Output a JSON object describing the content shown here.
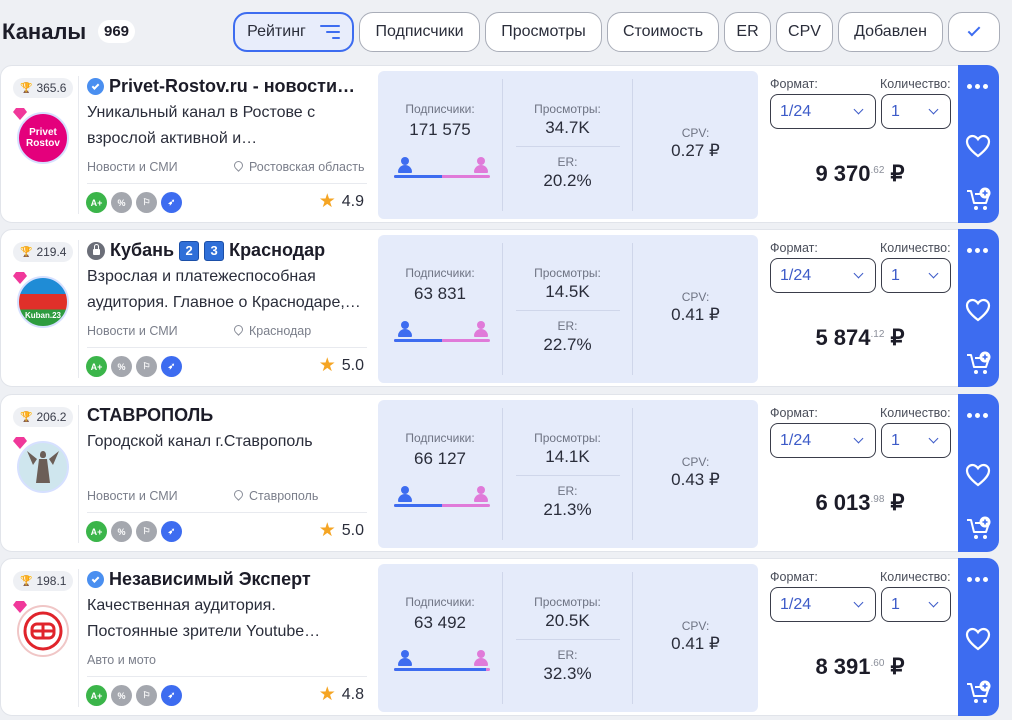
{
  "header": {
    "title": "Каналы",
    "count": "969",
    "filters": [
      "Рейтинг",
      "Подписчики",
      "Просмотры",
      "Стоимость",
      "ER",
      "CPV",
      "Добавлен"
    ],
    "active_filter": "Рейтинг"
  },
  "labels": {
    "subscribers": "Подписчики:",
    "views": "Просмотры:",
    "er": "ER:",
    "cpv": "CPV:",
    "format": "Формат:",
    "quantity": "Количество:"
  },
  "colors": {
    "accent": "#3d6cf0",
    "stats_bg": "#e5ebfa",
    "male": "#3d6cf0",
    "female": "#e07ad9",
    "badge_green": "#3bb54a",
    "star": "#f5a524"
  },
  "channels": [
    {
      "rating": "365.6",
      "name": "Privet-Rostov.ru - новости…",
      "verified": true,
      "desc": "Уникальный канал в Ростове с взрослой активной и…",
      "category": "Новости и СМИ",
      "region": "Ростовская область",
      "score": "4.9",
      "subscribers": "171 575",
      "views": "34.7K",
      "er": "20.2%",
      "cpv": "0.27 ₽",
      "male_share": 0.5,
      "format": "1/24",
      "qty": "1",
      "price": "9 370",
      "price_cents": ".62",
      "currency": "₽",
      "avatar_text": "Privet Rostov",
      "avatar_color": "#e4007c"
    },
    {
      "rating": "219.4",
      "name_a": "Кубань",
      "name_num1": "2",
      "name_num2": "3",
      "name_b": "Краснодар",
      "desc": "Взрослая и платежеспособная аудитория. Главное о Краснодаре,…",
      "category": "Новости и СМИ",
      "region": "Краснодар",
      "score": "5.0",
      "subscribers": "63 831",
      "views": "14.5K",
      "er": "22.7%",
      "cpv": "0.41 ₽",
      "male_share": 0.5,
      "format": "1/24",
      "qty": "1",
      "price": "5 874",
      "price_cents": ".12",
      "currency": "₽",
      "avatar_text": "Kuban.23",
      "avatar_color": "#2e9c3f"
    },
    {
      "rating": "206.2",
      "name": "СТАВРОПОЛЬ",
      "desc": "Городской канал г.Ставрополь",
      "category": "Новости и СМИ",
      "region": "Ставрополь",
      "score": "5.0",
      "subscribers": "66 127",
      "views": "14.1K",
      "er": "21.3%",
      "cpv": "0.43 ₽",
      "male_share": 0.5,
      "format": "1/24",
      "qty": "1",
      "price": "6 013",
      "price_cents": ".98",
      "currency": "₽",
      "avatar_color": "#cfe6ee"
    },
    {
      "rating": "198.1",
      "name": "Независимый Эксперт",
      "verified": true,
      "desc": "Качественная аудитория. Постоянные зрители Youtube…",
      "category": "Авто и мото",
      "score": "4.8",
      "subscribers": "63 492",
      "views": "20.5K",
      "er": "32.3%",
      "cpv": "0.41 ₽",
      "male_share": 0.96,
      "format": "1/24",
      "qty": "1",
      "price": "8 391",
      "price_cents": ".60",
      "currency": "₽",
      "avatar_color": "#ffffff"
    }
  ]
}
